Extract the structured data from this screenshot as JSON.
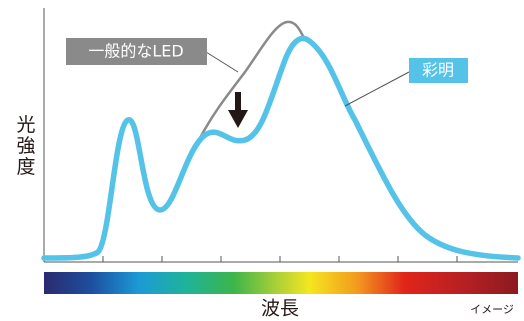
{
  "axis_labels": {
    "y": "光強度",
    "x": "波長"
  },
  "curves": {
    "conventional": "一般的なLED",
    "product": "彩明"
  },
  "note": "イメージ"
}
